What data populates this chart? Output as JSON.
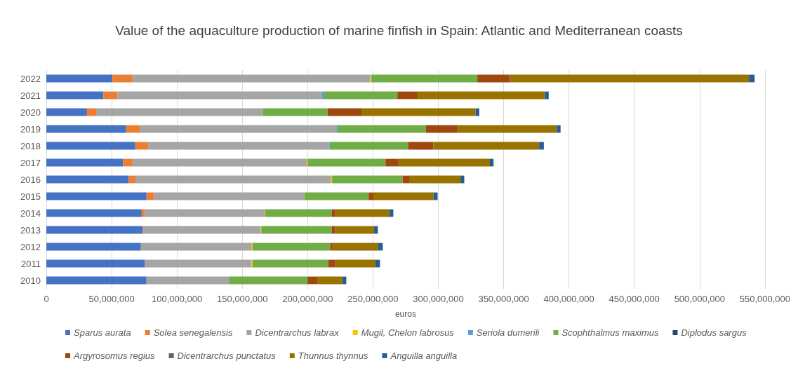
{
  "chart_data": {
    "type": "bar",
    "orientation": "horizontal",
    "stacked": true,
    "title": "Value of the aquaculture production of marine finfish in Spain: Atlantic and Mediterranean coasts",
    "xlabel": "euros",
    "categories": [
      "2022",
      "2021",
      "2020",
      "2019",
      "2018",
      "2017",
      "2016",
      "2015",
      "2014",
      "2013",
      "2012",
      "2011",
      "2010"
    ],
    "xlim": [
      0,
      550000000
    ],
    "xticks": [
      0,
      {
        "value": 50000000,
        "label": "50,000,000"
      },
      {
        "value": 100000000,
        "label": "100,000,000"
      },
      {
        "value": 150000000,
        "label": "150,000,000"
      },
      {
        "value": 200000000,
        "label": "200,000,000"
      },
      {
        "value": 250000000,
        "label": "250,000,000"
      },
      {
        "value": 300000000,
        "label": "300,000,000"
      },
      {
        "value": 350000000,
        "label": "350,000,000"
      },
      {
        "value": 400000000,
        "label": "400,000,000"
      },
      {
        "value": 450000000,
        "label": "450,000,000"
      },
      {
        "value": 500000000,
        "label": "500,000,000"
      },
      {
        "value": 550000000,
        "label": "550,000,000"
      }
    ],
    "grid": "x",
    "legend": "bottom",
    "series": [
      {
        "name": "Sparus aurata",
        "color": "#4472c4",
        "values": [
          50600000,
          43700000,
          31100000,
          61100000,
          68100000,
          58700000,
          63100000,
          76700000,
          73000000,
          73600000,
          72400000,
          75500000,
          76700000
        ]
      },
      {
        "name": "Solea senegalensis",
        "color": "#ed7d31",
        "values": [
          15600000,
          10800000,
          7000000,
          10700000,
          9900000,
          7500000,
          5100000,
          5700000,
          2500000,
          600000,
          null,
          null,
          null
        ]
      },
      {
        "name": "Dicentrarchus labrax",
        "color": "#a5a5a5",
        "values": [
          181700000,
          156500000,
          127600000,
          150600000,
          138300000,
          133100000,
          149700000,
          115000000,
          91600000,
          89800000,
          84500000,
          81600000,
          63500000
        ]
      },
      {
        "name": "Mugil, Chelon labrosus",
        "color": "#ffc000",
        "values": [
          900000,
          null,
          null,
          null,
          null,
          800000,
          800000,
          null,
          500000,
          500000,
          800000,
          800000,
          null
        ]
      },
      {
        "name": "Seriola dumerili",
        "color": "#5b9bd5",
        "values": [
          null,
          1700000,
          null,
          600000,
          600000,
          null,
          null,
          null,
          null,
          null,
          null,
          null,
          null
        ]
      },
      {
        "name": "Scophthalmus maximus",
        "color": "#70ad47",
        "values": [
          81100000,
          56000000,
          49500000,
          67500000,
          60000000,
          59500000,
          54000000,
          49300000,
          51000000,
          54100000,
          59600000,
          57800000,
          59800000
        ]
      },
      {
        "name": "Diplodus sargus",
        "color": "#264478",
        "values": [
          null,
          null,
          null,
          null,
          null,
          null,
          null,
          null,
          null,
          null,
          null,
          null,
          null
        ]
      },
      {
        "name": "Argyrosomus regius",
        "color": "#9e480e",
        "values": [
          24900000,
          15500000,
          26000000,
          24200000,
          19400000,
          10000000,
          5500000,
          3600000,
          3000000,
          2300000,
          1800000,
          5500000,
          7800000
        ]
      },
      {
        "name": "Dicentrarchus punctatus",
        "color": "#636363",
        "values": [
          null,
          null,
          null,
          null,
          null,
          null,
          null,
          null,
          null,
          null,
          null,
          null,
          null
        ]
      },
      {
        "name": "Thunnus thynnus",
        "color": "#997300",
        "values": [
          183000000,
          97400000,
          87300000,
          76000000,
          80900000,
          69900000,
          38800000,
          46100000,
          41000000,
          29900000,
          34900000,
          30700000,
          18800000
        ]
      },
      {
        "name": "Anguilla anguilla",
        "color": "#255e91",
        "values": [
          4300000,
          2900000,
          2900000,
          2900000,
          3600000,
          2800000,
          2900000,
          3100000,
          3000000,
          3000000,
          3500000,
          3500000,
          3000000
        ]
      }
    ]
  }
}
